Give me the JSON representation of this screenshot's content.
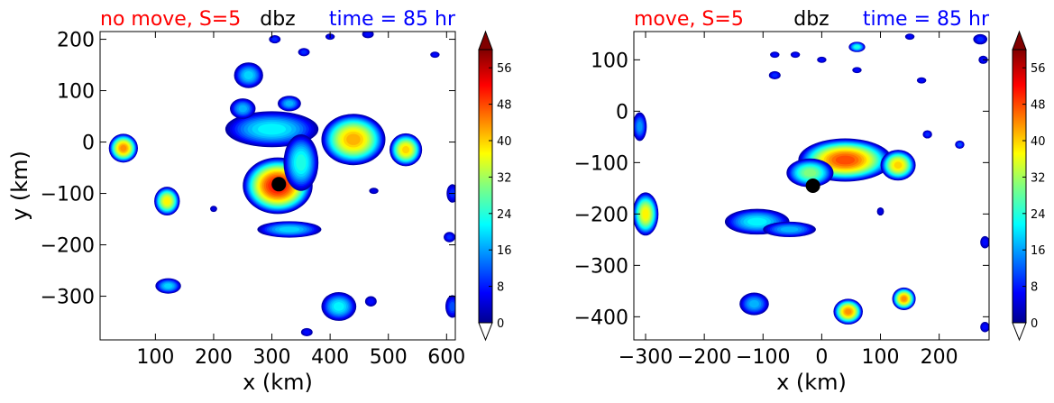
{
  "chart_data": [
    {
      "type": "heatmap",
      "title_left": "no move, S=5",
      "title_center": "dbz",
      "title_right": "time = 85 hr",
      "xlabel": "x (km)",
      "ylabel": "y (km)",
      "xlim": [
        5,
        615
      ],
      "ylim": [
        -385,
        215
      ],
      "xticks": [
        100,
        200,
        300,
        400,
        500,
        600
      ],
      "xtick_labels": [
        "100",
        "200",
        "300",
        "400",
        "500",
        "600"
      ],
      "yticks": [
        200,
        100,
        0,
        -100,
        -200,
        -300
      ],
      "ytick_labels": [
        "200",
        "100",
        "0",
        "−100",
        "−200",
        "−300"
      ],
      "center_marker": {
        "x": 312,
        "y": -82
      },
      "colorbar": {
        "label": "",
        "min": 0,
        "max": 60,
        "ticks": [
          0,
          8,
          16,
          24,
          32,
          40,
          48,
          56
        ],
        "tick_labels": [
          "0",
          "8",
          "16",
          "24",
          "32",
          "40",
          "48",
          "56"
        ],
        "extend": "both"
      },
      "echoes": [
        {
          "x": 310,
          "y": -85,
          "rx": 60,
          "ry": 55,
          "peak": 52
        },
        {
          "x": 300,
          "y": 25,
          "rx": 80,
          "ry": 35,
          "peak": 22
        },
        {
          "x": 350,
          "y": -40,
          "rx": 30,
          "ry": 55,
          "peak": 24
        },
        {
          "x": 330,
          "y": -170,
          "rx": 55,
          "ry": 16,
          "peak": 20
        },
        {
          "x": 260,
          "y": 130,
          "rx": 25,
          "ry": 25,
          "peak": 20
        },
        {
          "x": 250,
          "y": 65,
          "rx": 22,
          "ry": 20,
          "peak": 18
        },
        {
          "x": 330,
          "y": 75,
          "rx": 20,
          "ry": 15,
          "peak": 18
        },
        {
          "x": 440,
          "y": 5,
          "rx": 55,
          "ry": 50,
          "peak": 42
        },
        {
          "x": 530,
          "y": -15,
          "rx": 28,
          "ry": 32,
          "peak": 40
        },
        {
          "x": 45,
          "y": -12,
          "rx": 25,
          "ry": 28,
          "peak": 44
        },
        {
          "x": 120,
          "y": -115,
          "rx": 22,
          "ry": 28,
          "peak": 38
        },
        {
          "x": 122,
          "y": -280,
          "rx": 22,
          "ry": 15,
          "peak": 20
        },
        {
          "x": 415,
          "y": -320,
          "rx": 30,
          "ry": 28,
          "peak": 22
        },
        {
          "x": 470,
          "y": -310,
          "rx": 10,
          "ry": 10,
          "peak": 8
        },
        {
          "x": 610,
          "y": -320,
          "rx": 12,
          "ry": 22,
          "peak": 12
        },
        {
          "x": 610,
          "y": -100,
          "rx": 10,
          "ry": 18,
          "peak": 10
        },
        {
          "x": 605,
          "y": -185,
          "rx": 10,
          "ry": 10,
          "peak": 10
        },
        {
          "x": 355,
          "y": 175,
          "rx": 10,
          "ry": 8,
          "peak": 10
        },
        {
          "x": 305,
          "y": 200,
          "rx": 10,
          "ry": 8,
          "peak": 10
        },
        {
          "x": 465,
          "y": 210,
          "rx": 10,
          "ry": 8,
          "peak": 8
        },
        {
          "x": 400,
          "y": 205,
          "rx": 8,
          "ry": 6,
          "peak": 8
        },
        {
          "x": 580,
          "y": 170,
          "rx": 8,
          "ry": 6,
          "peak": 8
        },
        {
          "x": 200,
          "y": -130,
          "rx": 6,
          "ry": 6,
          "peak": 6
        },
        {
          "x": 360,
          "y": -370,
          "rx": 10,
          "ry": 8,
          "peak": 8
        },
        {
          "x": 475,
          "y": -95,
          "rx": 8,
          "ry": 6,
          "peak": 6
        }
      ]
    },
    {
      "type": "heatmap",
      "title_left": "move, S=5",
      "title_center": "dbz",
      "title_right": "time = 85 hr",
      "xlabel": "x (km)",
      "ylabel": "",
      "xlim": [
        -320,
        285
      ],
      "ylim": [
        -445,
        155
      ],
      "xticks": [
        -300,
        -200,
        -100,
        0,
        100,
        200
      ],
      "xtick_labels": [
        "−300",
        "−200",
        "−100",
        "0",
        "100",
        "200"
      ],
      "yticks": [
        100,
        0,
        -100,
        -200,
        -300,
        -400
      ],
      "ytick_labels": [
        "100",
        "0",
        "−100",
        "−200",
        "−300",
        "−400"
      ],
      "center_marker": {
        "x": -15,
        "y": -145
      },
      "colorbar": {
        "label": "",
        "min": 0,
        "max": 60,
        "ticks": [
          0,
          8,
          16,
          24,
          32,
          40,
          48,
          56
        ],
        "tick_labels": [
          "0",
          "8",
          "16",
          "24",
          "32",
          "40",
          "48",
          "56"
        ],
        "extend": "both"
      },
      "echoes": [
        {
          "x": 40,
          "y": -95,
          "rx": 80,
          "ry": 42,
          "peak": 48
        },
        {
          "x": 130,
          "y": -105,
          "rx": 30,
          "ry": 30,
          "peak": 40
        },
        {
          "x": -20,
          "y": -120,
          "rx": 40,
          "ry": 28,
          "peak": 30
        },
        {
          "x": -110,
          "y": -215,
          "rx": 55,
          "ry": 25,
          "peak": 22
        },
        {
          "x": -55,
          "y": -230,
          "rx": 45,
          "ry": 15,
          "peak": 18
        },
        {
          "x": -300,
          "y": -200,
          "rx": 22,
          "ry": 42,
          "peak": 38
        },
        {
          "x": -310,
          "y": -30,
          "rx": 12,
          "ry": 28,
          "peak": 16
        },
        {
          "x": -115,
          "y": -375,
          "rx": 25,
          "ry": 22,
          "peak": 18
        },
        {
          "x": 45,
          "y": -390,
          "rx": 25,
          "ry": 25,
          "peak": 44
        },
        {
          "x": 140,
          "y": -365,
          "rx": 20,
          "ry": 22,
          "peak": 44
        },
        {
          "x": 60,
          "y": 125,
          "rx": 14,
          "ry": 10,
          "peak": 24
        },
        {
          "x": -80,
          "y": 110,
          "rx": 8,
          "ry": 6,
          "peak": 8
        },
        {
          "x": -45,
          "y": 110,
          "rx": 8,
          "ry": 6,
          "peak": 8
        },
        {
          "x": 0,
          "y": 100,
          "rx": 8,
          "ry": 6,
          "peak": 8
        },
        {
          "x": -80,
          "y": 70,
          "rx": 10,
          "ry": 8,
          "peak": 10
        },
        {
          "x": 60,
          "y": 80,
          "rx": 8,
          "ry": 6,
          "peak": 8
        },
        {
          "x": 150,
          "y": 145,
          "rx": 8,
          "ry": 6,
          "peak": 8
        },
        {
          "x": 270,
          "y": 140,
          "rx": 12,
          "ry": 10,
          "peak": 10
        },
        {
          "x": 275,
          "y": 100,
          "rx": 8,
          "ry": 8,
          "peak": 8
        },
        {
          "x": 278,
          "y": -255,
          "rx": 8,
          "ry": 12,
          "peak": 8
        },
        {
          "x": 278,
          "y": -420,
          "rx": 8,
          "ry": 10,
          "peak": 8
        },
        {
          "x": 235,
          "y": -65,
          "rx": 8,
          "ry": 8,
          "peak": 12
        },
        {
          "x": 180,
          "y": -45,
          "rx": 8,
          "ry": 8,
          "peak": 10
        },
        {
          "x": 170,
          "y": 60,
          "rx": 8,
          "ry": 6,
          "peak": 8
        },
        {
          "x": 100,
          "y": -195,
          "rx": 6,
          "ry": 8,
          "peak": 6
        }
      ]
    }
  ],
  "colors": {
    "title_left": "#ff0000",
    "title_center": "#000000",
    "title_right": "#0000ff",
    "marker": "#000000"
  }
}
